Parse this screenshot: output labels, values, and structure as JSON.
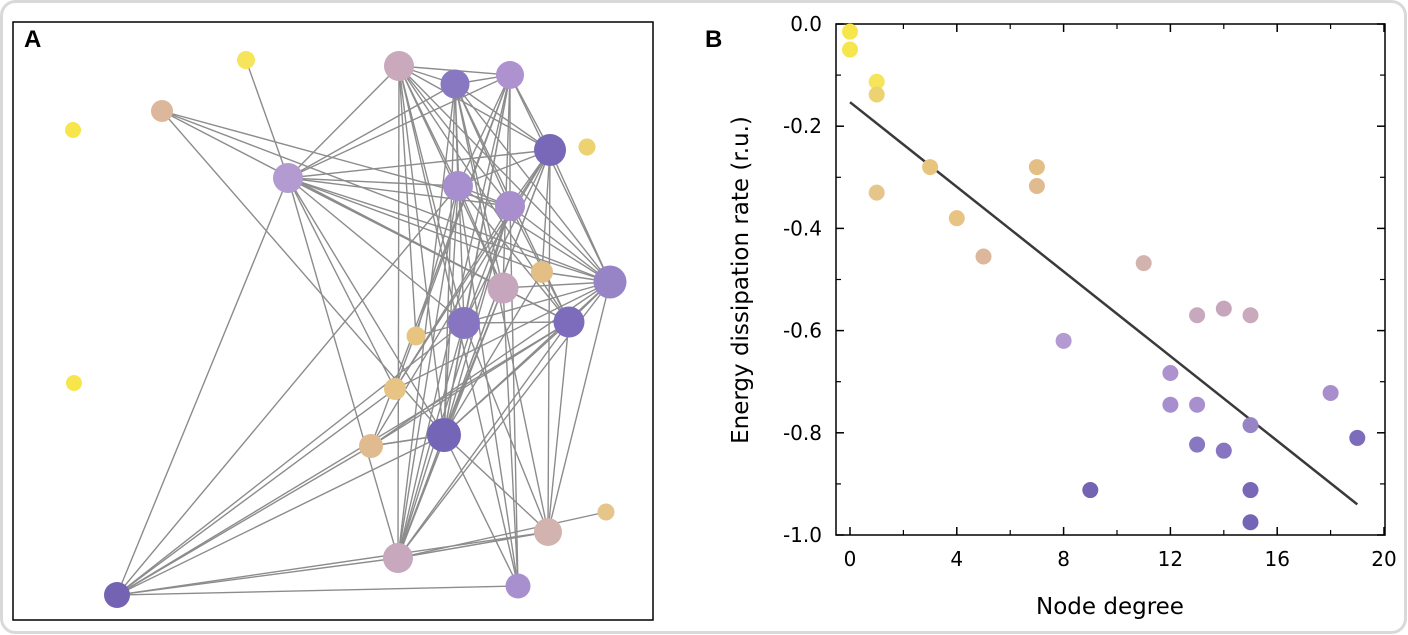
{
  "figure": {
    "panel_a_label": "A",
    "panel_b_label": "B"
  },
  "colors": {
    "frame": "#d9d9d9",
    "edge": "#8c8c8c",
    "fit_line": "#3a3a3a",
    "node_palette": [
      "#f9e84a",
      "#e8c57f",
      "#d9b29c",
      "#c9a7b9",
      "#b196cf",
      "#9782c7",
      "#7c6dba"
    ]
  },
  "network": {
    "nodes": [
      {
        "id": "n1",
        "degree": 0,
        "color": "#f7e64b"
      },
      {
        "id": "n2",
        "degree": 0,
        "color": "#f7e64b"
      },
      {
        "id": "n3",
        "degree": 1,
        "color": "#f6e45a"
      },
      {
        "id": "n4",
        "degree": 1,
        "color": "#ecd270"
      },
      {
        "id": "n5",
        "degree": 1,
        "color": "#e6c58a"
      },
      {
        "id": "n6",
        "degree": 3,
        "color": "#e8c57f"
      },
      {
        "id": "n7",
        "degree": 4,
        "color": "#e7c484"
      },
      {
        "id": "n8",
        "degree": 5,
        "color": "#dcb79b"
      },
      {
        "id": "n9",
        "degree": 7,
        "color": "#e3bf86"
      },
      {
        "id": "n10",
        "degree": 7,
        "color": "#e0bb90"
      },
      {
        "id": "n11",
        "degree": 8,
        "color": "#b39ad0"
      },
      {
        "id": "n12",
        "degree": 9,
        "color": "#7463b3"
      },
      {
        "id": "n13",
        "degree": 11,
        "color": "#d2b3ae"
      },
      {
        "id": "n14",
        "degree": 12,
        "color": "#ad92cf"
      },
      {
        "id": "n15",
        "degree": 12,
        "color": "#a78fcf"
      },
      {
        "id": "n16",
        "degree": 13,
        "color": "#c7a8bc"
      },
      {
        "id": "n17",
        "degree": 13,
        "color": "#a890cf"
      },
      {
        "id": "n18",
        "degree": 13,
        "color": "#8877c1"
      },
      {
        "id": "n19",
        "degree": 14,
        "color": "#c6a6bd"
      },
      {
        "id": "n20",
        "degree": 14,
        "color": "#8775c1"
      },
      {
        "id": "n21",
        "degree": 15,
        "color": "#c9a9bb"
      },
      {
        "id": "n22",
        "degree": 15,
        "color": "#9784c7"
      },
      {
        "id": "n23",
        "degree": 15,
        "color": "#7968b8"
      },
      {
        "id": "n24",
        "degree": 15,
        "color": "#7565b6"
      },
      {
        "id": "n25",
        "degree": 18,
        "color": "#a88ecc"
      },
      {
        "id": "n26",
        "degree": 19,
        "color": "#7d6cbb"
      }
    ]
  },
  "chart_data": {
    "type": "scatter",
    "title": "",
    "xlabel": "Node degree",
    "ylabel": "Energy dissipation rate (r.u.)",
    "xlim": [
      0,
      20
    ],
    "ylim": [
      -1.0,
      0.0
    ],
    "xticks": [
      0,
      4,
      8,
      12,
      16,
      20
    ],
    "xtick_labels": [
      "0",
      "4",
      "8",
      "12",
      "16",
      "20"
    ],
    "yticks": [
      0.0,
      -0.2,
      -0.4,
      -0.6,
      -0.8,
      -1.0
    ],
    "ytick_labels": [
      "0.0",
      "-0.2",
      "-0.4",
      "-0.6",
      "-0.8",
      "-1.0"
    ],
    "grid": false,
    "points": [
      {
        "x": 0,
        "y": -0.015,
        "color": "#f7e64b"
      },
      {
        "x": 0,
        "y": -0.05,
        "color": "#f7e64b"
      },
      {
        "x": 1,
        "y": -0.113,
        "color": "#f6e45a"
      },
      {
        "x": 1,
        "y": -0.138,
        "color": "#ecd270"
      },
      {
        "x": 1,
        "y": -0.33,
        "color": "#e6c58a"
      },
      {
        "x": 3,
        "y": -0.28,
        "color": "#e8c57f"
      },
      {
        "x": 4,
        "y": -0.38,
        "color": "#e7c484"
      },
      {
        "x": 5,
        "y": -0.455,
        "color": "#dcb79b"
      },
      {
        "x": 7,
        "y": -0.28,
        "color": "#e3bf86"
      },
      {
        "x": 7,
        "y": -0.317,
        "color": "#e0bb90"
      },
      {
        "x": 8,
        "y": -0.62,
        "color": "#b39ad0"
      },
      {
        "x": 9,
        "y": -0.912,
        "color": "#7463b3"
      },
      {
        "x": 11,
        "y": -0.468,
        "color": "#d2b3ae"
      },
      {
        "x": 12,
        "y": -0.683,
        "color": "#ad92cf"
      },
      {
        "x": 12,
        "y": -0.745,
        "color": "#a78fcf"
      },
      {
        "x": 13,
        "y": -0.57,
        "color": "#c7a8bc"
      },
      {
        "x": 13,
        "y": -0.745,
        "color": "#a890cf"
      },
      {
        "x": 13,
        "y": -0.823,
        "color": "#8877c1"
      },
      {
        "x": 14,
        "y": -0.557,
        "color": "#c6a6bd"
      },
      {
        "x": 14,
        "y": -0.835,
        "color": "#8775c1"
      },
      {
        "x": 15,
        "y": -0.57,
        "color": "#c9a9bb"
      },
      {
        "x": 15,
        "y": -0.785,
        "color": "#9784c7"
      },
      {
        "x": 15,
        "y": -0.912,
        "color": "#7968b8"
      },
      {
        "x": 15,
        "y": -0.975,
        "color": "#7565b6"
      },
      {
        "x": 18,
        "y": -0.722,
        "color": "#a88ecc"
      },
      {
        "x": 19,
        "y": -0.81,
        "color": "#7d6cbb"
      }
    ],
    "fit_line": {
      "x": [
        0,
        19
      ],
      "y": [
        -0.153,
        -0.94
      ]
    }
  }
}
